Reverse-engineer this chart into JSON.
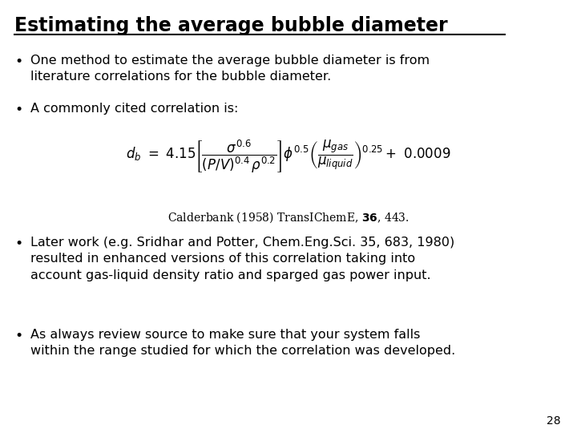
{
  "title": "Estimating the average bubble diameter",
  "background_color": "#ffffff",
  "text_color": "#000000",
  "bullet1": "One method to estimate the average bubble diameter is from\nliterature correlations for the bubble diameter.",
  "bullet2": "A commonly cited correlation is:",
  "citation_pre": "Calderbank (1958) TransIChemE, ",
  "citation_bold": "36",
  "citation_post": ", 443.",
  "bullet3": "Later work (e.g. Sridhar and Potter, Chem.Eng.Sci. 35, 683, 1980)\nresulted in enhanced versions of this correlation taking into\naccount gas-liquid density ratio and sparged gas power input.",
  "bullet4": "As always review source to make sure that your system falls\nwithin the range studied for which the correlation was developed.",
  "page_number": "28",
  "title_fontsize": 17,
  "body_fontsize": 11.5,
  "eq_fontsize": 12,
  "citation_fontsize": 10
}
